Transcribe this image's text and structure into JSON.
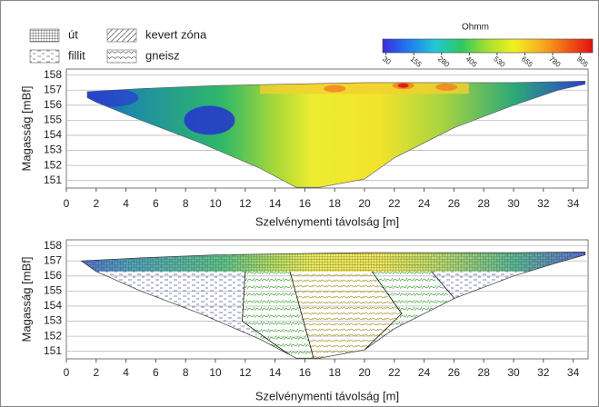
{
  "chart_data": [
    {
      "type": "section",
      "xlabel": "Szelvénymenti távolság [m]",
      "ylabel": "Magasság [mBf]",
      "xlim": [
        0,
        35
      ],
      "ylim": [
        150.5,
        158.4
      ],
      "xticks": [
        0,
        2,
        4,
        6,
        8,
        10,
        12,
        14,
        16,
        18,
        20,
        22,
        24,
        26,
        28,
        30,
        32,
        34
      ],
      "yticks": [
        151,
        152,
        153,
        154,
        155,
        156,
        157,
        158
      ],
      "grid": true,
      "colorbar": {
        "title": "Ohmm",
        "clim": [
          15,
          960
        ],
        "ticks": [
          30,
          155,
          280,
          405,
          530,
          655,
          780,
          905
        ],
        "colors": [
          "#3a2cd8",
          "#1f7cf0",
          "#22c8d8",
          "#2cc860",
          "#a8e030",
          "#f0f020",
          "#f8b020",
          "#f06018",
          "#e01010"
        ]
      }
    },
    {
      "type": "geology",
      "xlabel": "Szelvénymenti távolság [m]",
      "ylabel": "Magasság [mBf]",
      "xlim": [
        0,
        35
      ],
      "ylim": [
        150.5,
        158.4
      ],
      "xticks": [
        0,
        2,
        4,
        6,
        8,
        10,
        12,
        14,
        16,
        18,
        20,
        22,
        24,
        26,
        28,
        30,
        32,
        34
      ],
      "yticks": [
        151,
        152,
        153,
        154,
        155,
        156,
        157,
        158
      ],
      "grid": true,
      "legend": [
        "út",
        "fillit",
        "kevert zóna",
        "gneisz"
      ]
    }
  ]
}
